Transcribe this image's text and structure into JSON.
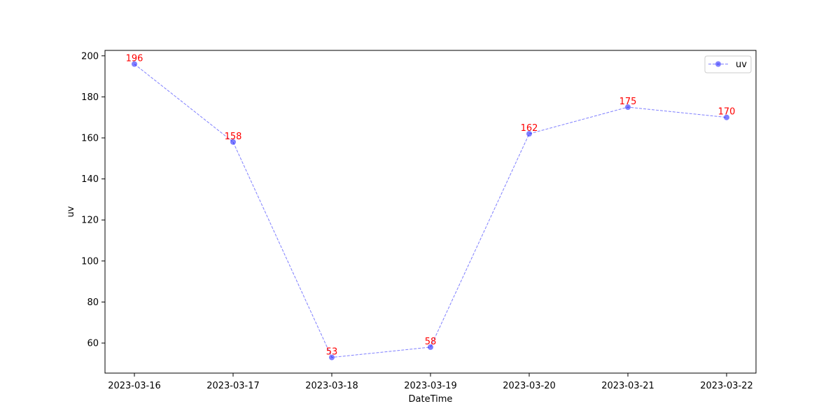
{
  "chart_data": {
    "type": "line",
    "title": "",
    "xlabel": "DateTime",
    "ylabel": "uv",
    "categories": [
      "2023-03-16",
      "2023-03-17",
      "2023-03-18",
      "2023-03-19",
      "2023-03-20",
      "2023-03-21",
      "2023-03-22"
    ],
    "series": [
      {
        "name": "uv",
        "values": [
          196,
          158,
          53,
          58,
          162,
          175,
          170
        ],
        "color": "#0000ff",
        "line_style": "dashed",
        "marker": "circle"
      }
    ],
    "data_labels": [
      "196",
      "158",
      "53",
      "58",
      "162",
      "175",
      "170"
    ],
    "data_label_color": "#ff0000",
    "ylim": [
      45.35,
      202.65
    ],
    "yticks": [
      60,
      80,
      100,
      120,
      140,
      160,
      180,
      200
    ],
    "grid": false,
    "legend": {
      "position": "top-right",
      "entries": [
        "uv"
      ]
    }
  }
}
